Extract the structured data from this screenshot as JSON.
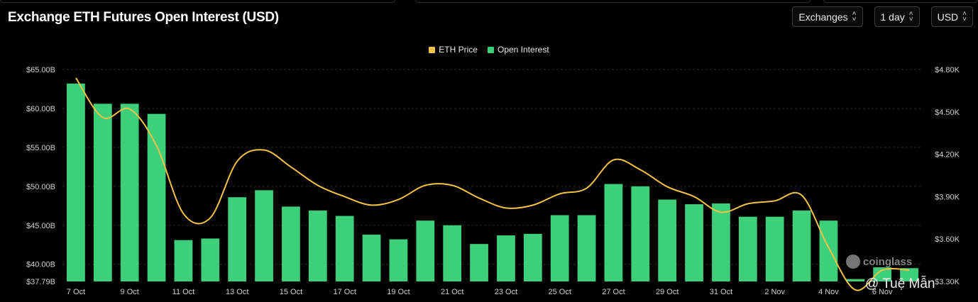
{
  "header": {
    "title": "Exchange ETH Futures Open Interest (USD)",
    "controls": [
      {
        "label": "Exchanges"
      },
      {
        "label": "1 day"
      },
      {
        "label": "USD"
      }
    ]
  },
  "logo_text": "coinglass",
  "watermark_text": "@ Tuệ Mẫn",
  "colors": {
    "bar": "#3ecf7a",
    "line": "#f3c246",
    "grid": "#2a2a2a",
    "axis_text": "#cfcfcf"
  },
  "chart_data": {
    "type": "bar",
    "legend": [
      {
        "name": "ETH Price",
        "color": "#f3c246"
      },
      {
        "name": "Open Interest",
        "color": "#3ecf7a"
      }
    ],
    "legend_position": "top-center",
    "grid": true,
    "x_tick_labels": [
      "7 Oct",
      "9 Oct",
      "11 Oct",
      "13 Oct",
      "15 Oct",
      "17 Oct",
      "19 Oct",
      "21 Oct",
      "23 Oct",
      "25 Oct",
      "27 Oct",
      "29 Oct",
      "31 Oct",
      "2 Nov",
      "4 Nov",
      "6 Nov"
    ],
    "y_left_ticks": [
      "$37.79B",
      "$40.00B",
      "$45.00B",
      "$50.00B",
      "$55.00B",
      "$60.00B",
      "$65.00B"
    ],
    "y_left_tick_values": [
      37.79,
      40,
      45,
      50,
      55,
      60,
      65
    ],
    "y_left_range": [
      37.79,
      65
    ],
    "y_right_ticks": [
      "$3.30K",
      "$3.60K",
      "$3.90K",
      "$4.20K",
      "$4.50K",
      "$4.80K"
    ],
    "y_right_tick_values": [
      3.3,
      3.6,
      3.9,
      4.2,
      4.5,
      4.8
    ],
    "y_right_range": [
      3.3,
      4.8
    ],
    "categories": [
      "7 Oct",
      "8 Oct",
      "9 Oct",
      "10 Oct",
      "11 Oct",
      "12 Oct",
      "13 Oct",
      "14 Oct",
      "15 Oct",
      "16 Oct",
      "17 Oct",
      "18 Oct",
      "19 Oct",
      "20 Oct",
      "21 Oct",
      "22 Oct",
      "23 Oct",
      "24 Oct",
      "25 Oct",
      "26 Oct",
      "27 Oct",
      "28 Oct",
      "29 Oct",
      "30 Oct",
      "31 Oct",
      "1 Nov",
      "2 Nov",
      "3 Nov",
      "4 Nov",
      "5 Nov",
      "6 Nov",
      "7 Nov"
    ],
    "series": [
      {
        "name": "Open Interest",
        "axis": "left",
        "type": "bar",
        "values": [
          63.2,
          60.6,
          60.6,
          59.3,
          43.1,
          43.3,
          48.6,
          49.5,
          47.4,
          46.9,
          46.2,
          43.8,
          43.2,
          45.6,
          45.0,
          42.6,
          43.7,
          43.9,
          46.3,
          46.3,
          50.3,
          50.0,
          48.3,
          47.7,
          47.8,
          46.1,
          46.1,
          46.9,
          45.6,
          38.1,
          39.6,
          39.5
        ]
      },
      {
        "name": "ETH Price",
        "axis": "right",
        "type": "line",
        "values": [
          4.74,
          4.46,
          4.52,
          4.26,
          3.78,
          3.75,
          4.15,
          4.23,
          4.11,
          3.98,
          3.9,
          3.84,
          3.88,
          3.98,
          3.98,
          3.89,
          3.82,
          3.84,
          3.92,
          3.96,
          4.16,
          4.09,
          3.97,
          3.9,
          3.79,
          3.85,
          3.87,
          3.91,
          3.54,
          3.24,
          3.38,
          3.38
        ]
      }
    ]
  }
}
